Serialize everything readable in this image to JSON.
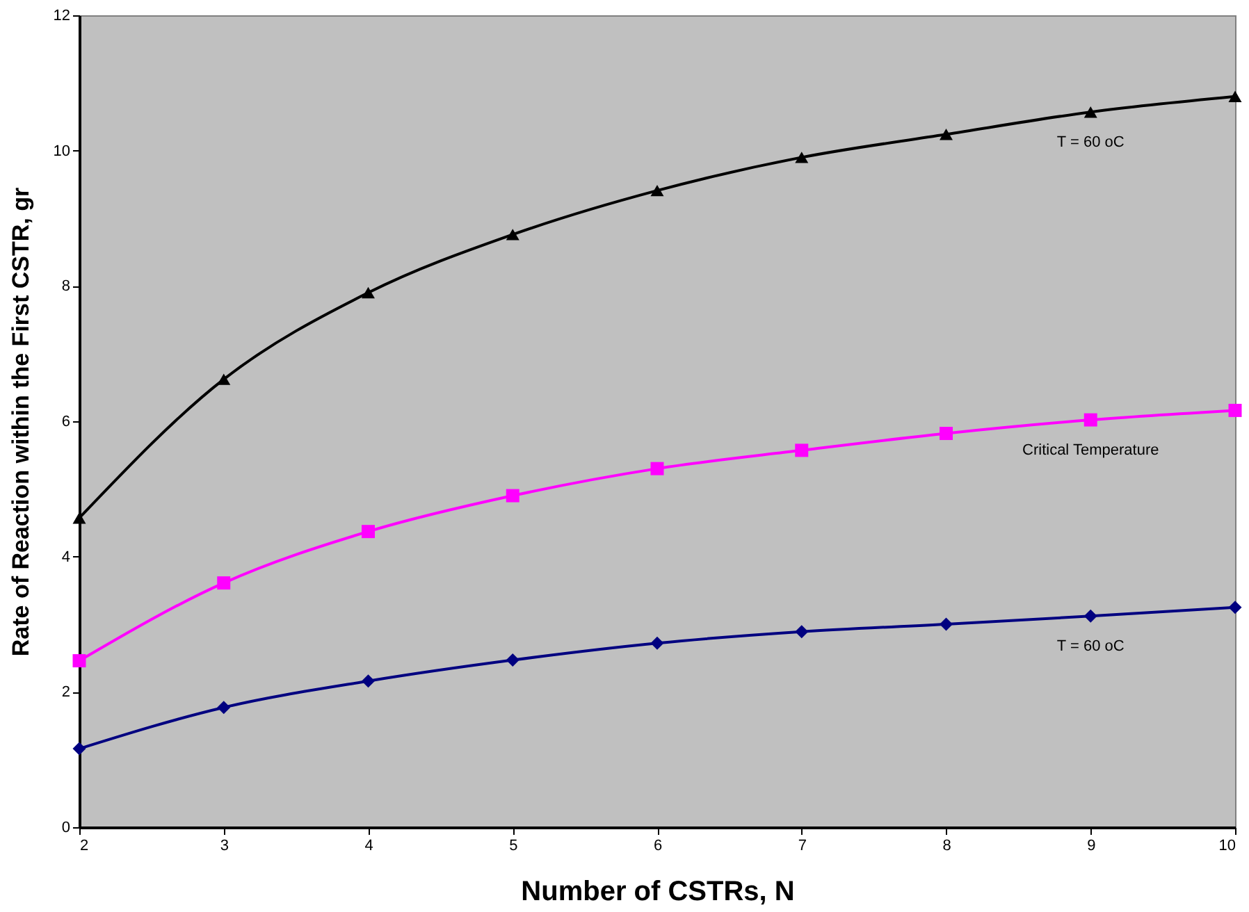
{
  "chart_data": {
    "type": "line",
    "xlabel": "Number of CSTRs, N",
    "ylabel": "Rate of Reaction within the First CSTR, gr",
    "x": [
      2,
      3,
      4,
      5,
      6,
      7,
      8,
      9,
      10
    ],
    "series": [
      {
        "name": "T = 60 oC",
        "color": "#000000",
        "marker": "triangle",
        "values": [
          4.57,
          6.62,
          7.9,
          8.76,
          9.41,
          9.9,
          10.24,
          10.57,
          10.8
        ]
      },
      {
        "name": "Critical Temperature",
        "color": "#ff00ff",
        "marker": "square",
        "values": [
          2.46,
          3.61,
          4.37,
          4.9,
          5.3,
          5.57,
          5.82,
          6.02,
          6.16
        ]
      },
      {
        "name": "T = 60 oC",
        "color": "#000080",
        "marker": "diamond",
        "values": [
          1.16,
          1.77,
          2.16,
          2.47,
          2.72,
          2.89,
          3.0,
          3.12,
          3.25
        ]
      }
    ],
    "xlim": [
      2,
      10
    ],
    "xticks": [
      2,
      3,
      4,
      5,
      6,
      7,
      8,
      9,
      10
    ],
    "ylim": [
      0,
      12
    ],
    "yticks": [
      0,
      2,
      4,
      6,
      8,
      10,
      12
    ],
    "grid": false
  }
}
